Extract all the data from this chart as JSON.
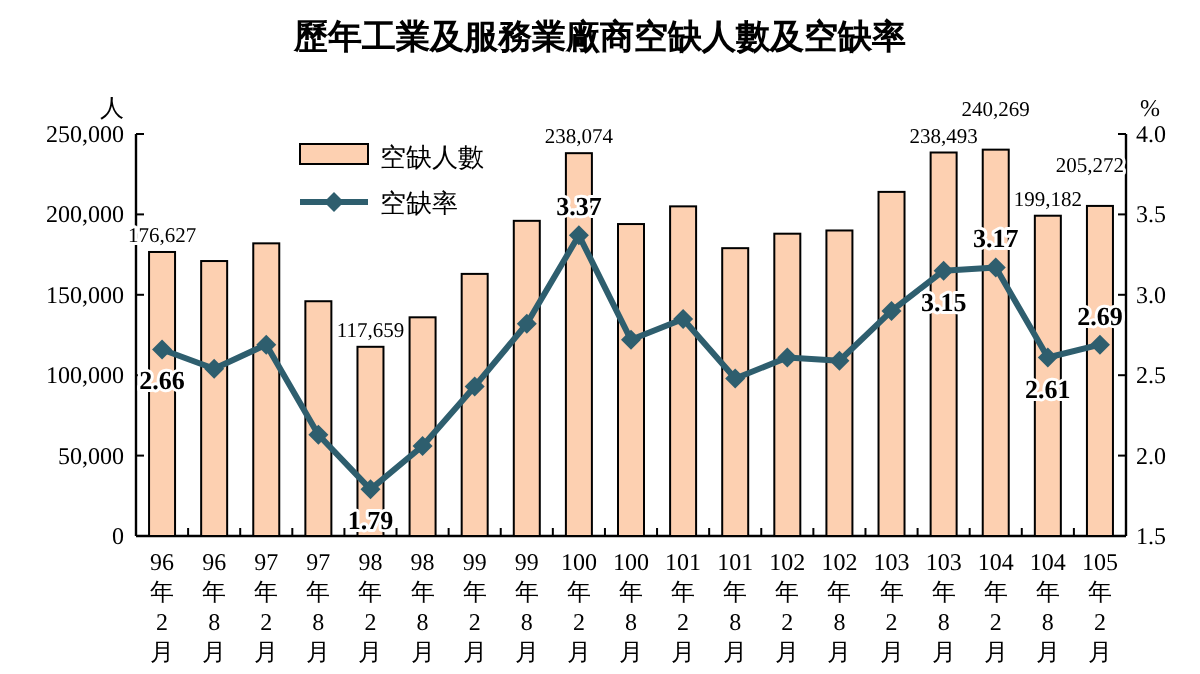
{
  "chart_data": {
    "type": "bar",
    "title": "歷年工業及服務業廠商空缺人數及空缺率",
    "ylabel": "人",
    "y2label": "%",
    "categories": [
      "96年2月",
      "96年8月",
      "97年2月",
      "97年8月",
      "98年2月",
      "98年8月",
      "99年2月",
      "99年8月",
      "100年2月",
      "100年8月",
      "101年2月",
      "101年8月",
      "102年2月",
      "102年8月",
      "103年2月",
      "103年8月",
      "104年2月",
      "104年8月",
      "105年2月"
    ],
    "series": [
      {
        "name": "空缺人數",
        "color": "#fdd0b1",
        "values": [
          176627,
          171000,
          182000,
          146000,
          117659,
          136000,
          163000,
          196000,
          238074,
          194000,
          205000,
          179000,
          188000,
          190000,
          214000,
          238493,
          240269,
          199182,
          205272
        ],
        "value_labels": [
          "176,627",
          null,
          null,
          null,
          "117,659",
          null,
          null,
          null,
          "238,074",
          null,
          null,
          null,
          null,
          null,
          null,
          "238,493",
          "240,269",
          "199,182",
          "205,272"
        ]
      },
      {
        "name": "空缺率",
        "type": "line",
        "axis": "y2",
        "color": "#2e5e6e",
        "marker": "diamond",
        "values": [
          2.66,
          2.54,
          2.69,
          2.13,
          1.79,
          2.06,
          2.43,
          2.82,
          3.37,
          2.72,
          2.85,
          2.48,
          2.61,
          2.59,
          2.9,
          3.15,
          3.17,
          2.61,
          2.69
        ],
        "value_labels": [
          "2.66",
          null,
          null,
          null,
          "1.79",
          null,
          null,
          null,
          "3.37",
          null,
          null,
          null,
          null,
          null,
          null,
          "3.15",
          "3.17",
          "2.61",
          "2.69"
        ]
      }
    ],
    "ylim": [
      0,
      250000
    ],
    "yticks": [
      0,
      {
        "value": 50000,
        "label": "50,000"
      },
      {
        "value": 100000,
        "label": "100,000"
      },
      {
        "value": 150000,
        "label": "150,000"
      },
      {
        "value": 200000,
        "label": "200,000"
      },
      {
        "value": 250000,
        "label": "250,000"
      }
    ],
    "y2lim": [
      1.5,
      4.0
    ],
    "y2ticks": [
      1.5,
      {
        "value": 2.0,
        "label": "2.0"
      },
      2.5,
      {
        "value": 3.0,
        "label": "3.0"
      },
      3.5,
      {
        "value": 4.0,
        "label": "4.0"
      }
    ],
    "legend": "top left",
    "grid": false
  }
}
